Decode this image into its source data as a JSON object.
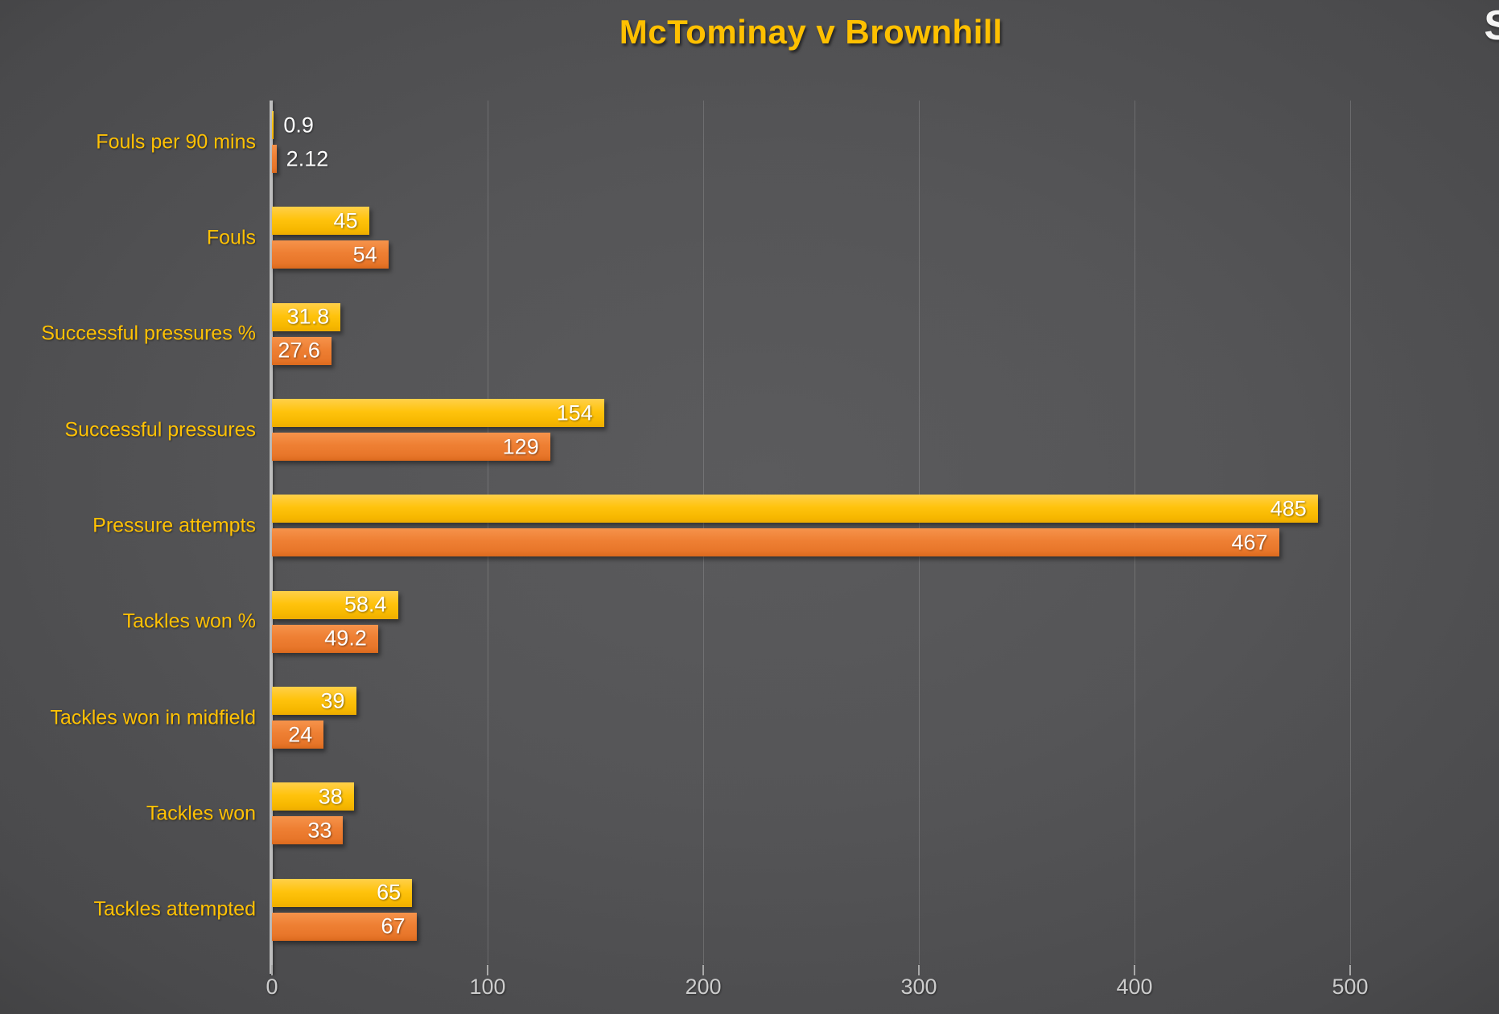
{
  "page": {
    "title": "McTominay v Brownhill",
    "watermark_partial": "S"
  },
  "chart_data": {
    "type": "bar",
    "orientation": "horizontal",
    "title": "McTominay v Brownhill",
    "categories": [
      "Fouls per 90 mins",
      "Fouls",
      "Successful pressures %",
      "Successful pressures",
      "Pressure attempts",
      "Tackles won %",
      "Tackles won in midfield",
      "Tackles won",
      "Tackles attempted"
    ],
    "series": [
      {
        "name": "McTominay",
        "color": "#FFC000",
        "values": [
          0.9,
          45,
          31.8,
          154,
          485,
          58.4,
          39,
          38,
          65
        ],
        "labels": [
          "0.9",
          "45",
          "31.8",
          "154",
          "485",
          "58.4",
          "39",
          "38",
          "65"
        ]
      },
      {
        "name": "Brownhill",
        "color": "#ED7D31",
        "values": [
          2.12,
          54,
          27.6,
          129,
          467,
          49.2,
          24,
          33,
          67
        ],
        "labels": [
          "2.12",
          "54",
          "27.6",
          "129",
          "467",
          "49.2",
          "24",
          "33",
          "67"
        ]
      }
    ],
    "x_axis": {
      "min": 0,
      "max": 500,
      "ticks": [
        "0",
        "100",
        "200",
        "300",
        "400",
        "500"
      ]
    },
    "grid": true,
    "legend": "none",
    "title_color": "#FFC000",
    "category_label_color": "#FFC104",
    "value_label_color": "#FFFFFF",
    "axis_label_color": "#CCCCCC",
    "background_color_center": "#565658",
    "background_color_edge": "#252526"
  }
}
